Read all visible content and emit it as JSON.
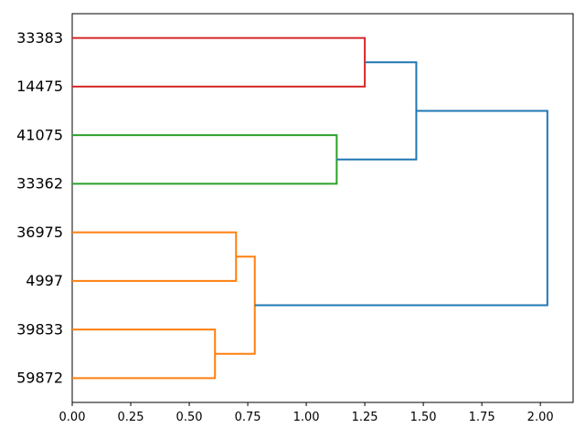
{
  "figure": {
    "background": "#ffffff",
    "title": ""
  },
  "chart_data": {
    "type": "dendrogram",
    "orientation": "leaves-left-root-right",
    "title": "",
    "xlabel": "",
    "ylabel": "",
    "grid": false,
    "leaf_labels": [
      "33383",
      "14475",
      "41075",
      "33362",
      "36975",
      "4997",
      "39833",
      "59872"
    ],
    "x_ticks": [
      "0.00",
      "0.25",
      "0.50",
      "0.75",
      "1.00",
      "1.25",
      "1.50",
      "1.75",
      "2.00"
    ],
    "x_tick_values": [
      0,
      0.25,
      0.5,
      0.75,
      1.0,
      1.25,
      1.5,
      1.75,
      2.0
    ],
    "xlim": [
      0,
      2.14
    ],
    "colors": {
      "above_threshold_blue": "#1f77b4",
      "cluster_orange": "#ff7f0e",
      "cluster_green": "#2ca02c",
      "cluster_red": "#d62728",
      "axis": "#000000"
    },
    "links": [
      {
        "name": "red-pair-33383-14475",
        "color": "#d62728",
        "height": 1.25,
        "child_heights": [
          0,
          0
        ],
        "child_positions": [
          0.5,
          1.5
        ]
      },
      {
        "name": "green-pair-41075-33362",
        "color": "#2ca02c",
        "height": 1.13,
        "child_heights": [
          0,
          0
        ],
        "child_positions": [
          2.5,
          3.5
        ]
      },
      {
        "name": "orange-pair-36975-4997",
        "color": "#ff7f0e",
        "height": 0.7,
        "child_heights": [
          0,
          0
        ],
        "child_positions": [
          4.5,
          5.5
        ]
      },
      {
        "name": "orange-pair-39833-59872",
        "color": "#ff7f0e",
        "height": 0.61,
        "child_heights": [
          0,
          0
        ],
        "child_positions": [
          6.5,
          7.5
        ]
      },
      {
        "name": "orange-cluster-merge",
        "color": "#ff7f0e",
        "height": 0.78,
        "child_heights": [
          0.7,
          0.61
        ],
        "child_positions": [
          5.0,
          7.0
        ]
      },
      {
        "name": "blue-red-green-merge",
        "color": "#1f77b4",
        "height": 1.47,
        "child_heights": [
          1.25,
          1.13
        ],
        "child_positions": [
          1.0,
          3.0
        ]
      },
      {
        "name": "blue-root-merge",
        "color": "#1f77b4",
        "height": 2.03,
        "child_heights": [
          1.47,
          0.78
        ],
        "child_positions": [
          2.0,
          6.0
        ]
      }
    ]
  }
}
